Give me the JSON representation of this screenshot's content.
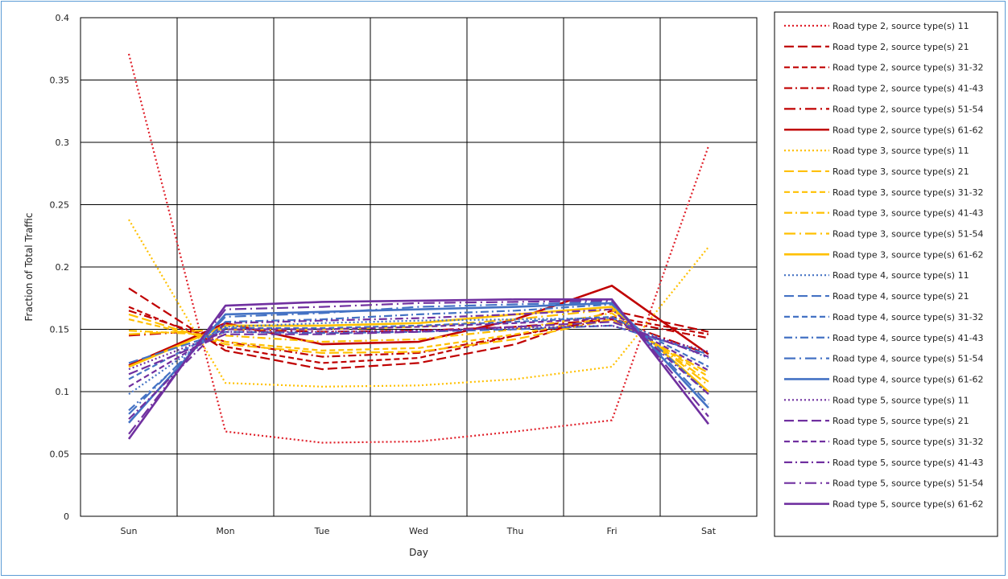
{
  "chart_data": {
    "type": "line",
    "title": "",
    "xlabel": "Day",
    "ylabel": "Fraction of Total Traffic",
    "categories": [
      "Sun",
      "Mon",
      "Tue",
      "Wed",
      "Thu",
      "Fri",
      "Sat"
    ],
    "ylim": [
      0,
      0.4
    ],
    "yticks": [
      "0",
      "0.05",
      "0.1",
      "0.15",
      "0.2",
      "0.25",
      "0.3",
      "0.35",
      "0.4"
    ],
    "grid": true,
    "legend_position": "right",
    "series": [
      {
        "name": "Road type 2, source type(s) 11",
        "color": "#e0202a",
        "dash": "dotted",
        "values": [
          0.371,
          0.068,
          0.059,
          0.06,
          0.068,
          0.077,
          0.297
        ]
      },
      {
        "name": "Road type 2, source type(s) 21",
        "color": "#c00000",
        "dash": "longdash",
        "values": [
          0.183,
          0.133,
          0.118,
          0.123,
          0.138,
          0.165,
          0.148
        ]
      },
      {
        "name": "Road type 2, source type(s) 31-32",
        "color": "#c00000",
        "dash": "dash",
        "values": [
          0.168,
          0.136,
          0.123,
          0.127,
          0.145,
          0.16,
          0.146
        ]
      },
      {
        "name": "Road type 2, source type(s) 41-43",
        "color": "#c00000",
        "dash": "dashdot",
        "values": [
          0.165,
          0.14,
          0.128,
          0.131,
          0.145,
          0.158,
          0.143
        ]
      },
      {
        "name": "Road type 2, source type(s) 51-54",
        "color": "#c00000",
        "dash": "longdashdot",
        "values": [
          0.145,
          0.15,
          0.148,
          0.149,
          0.152,
          0.158,
          0.13
        ]
      },
      {
        "name": "Road type 2, source type(s) 61-62",
        "color": "#c00000",
        "dash": "solid",
        "values": [
          0.121,
          0.155,
          0.138,
          0.14,
          0.158,
          0.185,
          0.13
        ]
      },
      {
        "name": "Road type 3, source type(s) 11",
        "color": "#ffc000",
        "dash": "dotted",
        "values": [
          0.238,
          0.107,
          0.104,
          0.105,
          0.11,
          0.12,
          0.216
        ]
      },
      {
        "name": "Road type 3, source type(s) 21",
        "color": "#ffc000",
        "dash": "longdash",
        "values": [
          0.162,
          0.138,
          0.131,
          0.132,
          0.142,
          0.158,
          0.115
        ]
      },
      {
        "name": "Road type 3, source type(s) 31-32",
        "color": "#ffc000",
        "dash": "dash",
        "values": [
          0.158,
          0.14,
          0.133,
          0.135,
          0.146,
          0.16,
          0.112
        ]
      },
      {
        "name": "Road type 3, source type(s) 41-43",
        "color": "#ffc000",
        "dash": "dashdot",
        "values": [
          0.149,
          0.145,
          0.14,
          0.142,
          0.15,
          0.163,
          0.108
        ]
      },
      {
        "name": "Road type 3, source type(s) 51-54",
        "color": "#ffc000",
        "dash": "longdashdot",
        "values": [
          0.146,
          0.15,
          0.15,
          0.152,
          0.158,
          0.166,
          0.105
        ]
      },
      {
        "name": "Road type 3, source type(s) 61-62",
        "color": "#ffc000",
        "dash": "solid",
        "values": [
          0.12,
          0.153,
          0.153,
          0.155,
          0.162,
          0.168,
          0.1
        ]
      },
      {
        "name": "Road type 4, source type(s) 11",
        "color": "#4472c4",
        "dash": "dotted",
        "values": [
          0.098,
          0.152,
          0.155,
          0.157,
          0.158,
          0.159,
          0.127
        ]
      },
      {
        "name": "Road type 4, source type(s) 21",
        "color": "#4472c4",
        "dash": "longdash",
        "values": [
          0.123,
          0.148,
          0.147,
          0.148,
          0.15,
          0.153,
          0.13
        ]
      },
      {
        "name": "Road type 4, source type(s) 31-32",
        "color": "#4472c4",
        "dash": "dash",
        "values": [
          0.11,
          0.151,
          0.151,
          0.153,
          0.156,
          0.16,
          0.12
        ]
      },
      {
        "name": "Road type 4, source type(s) 41-43",
        "color": "#4472c4",
        "dash": "dashdot",
        "values": [
          0.085,
          0.156,
          0.158,
          0.162,
          0.165,
          0.17,
          0.098
        ]
      },
      {
        "name": "Road type 4, source type(s) 51-54",
        "color": "#4472c4",
        "dash": "longdashdot",
        "values": [
          0.082,
          0.16,
          0.163,
          0.168,
          0.17,
          0.172,
          0.09
        ]
      },
      {
        "name": "Road type 4, source type(s) 61-62",
        "color": "#4472c4",
        "dash": "solid",
        "values": [
          0.075,
          0.162,
          0.164,
          0.166,
          0.168,
          0.171,
          0.087
        ]
      },
      {
        "name": "Road type 5, source type(s) 11",
        "color": "#7030a0",
        "dash": "dotted",
        "values": [
          0.118,
          0.148,
          0.148,
          0.149,
          0.151,
          0.153,
          0.132
        ]
      },
      {
        "name": "Road type 5, source type(s) 21",
        "color": "#7030a0",
        "dash": "longdash",
        "values": [
          0.114,
          0.146,
          0.146,
          0.148,
          0.152,
          0.156,
          0.128
        ]
      },
      {
        "name": "Road type 5, source type(s) 31-32",
        "color": "#7030a0",
        "dash": "dash",
        "values": [
          0.104,
          0.15,
          0.15,
          0.152,
          0.155,
          0.159,
          0.117
        ]
      },
      {
        "name": "Road type 5, source type(s) 41-43",
        "color": "#7030a0",
        "dash": "dashdot",
        "values": [
          0.078,
          0.155,
          0.157,
          0.159,
          0.162,
          0.166,
          0.098
        ]
      },
      {
        "name": "Road type 5, source type(s) 51-54",
        "color": "#7030a0",
        "dash": "longdashdot",
        "values": [
          0.066,
          0.166,
          0.168,
          0.171,
          0.172,
          0.173,
          0.08
        ]
      },
      {
        "name": "Road type 5, source type(s) 61-62",
        "color": "#7030a0",
        "dash": "solid",
        "values": [
          0.062,
          0.169,
          0.172,
          0.173,
          0.174,
          0.174,
          0.074
        ]
      }
    ]
  }
}
